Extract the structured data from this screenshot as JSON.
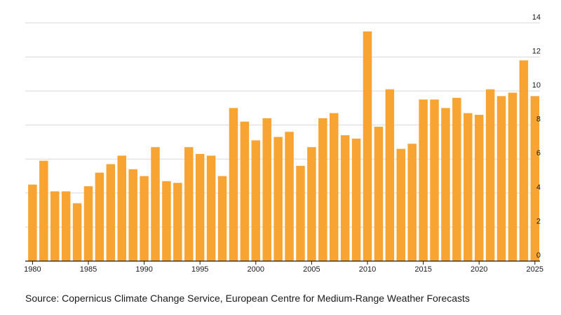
{
  "chart_data": {
    "type": "bar",
    "x": [
      1980,
      1981,
      1982,
      1983,
      1984,
      1985,
      1986,
      1987,
      1988,
      1989,
      1990,
      1991,
      1992,
      1993,
      1994,
      1995,
      1996,
      1997,
      1998,
      1999,
      2000,
      2001,
      2002,
      2003,
      2004,
      2005,
      2006,
      2007,
      2008,
      2009,
      2010,
      2011,
      2012,
      2013,
      2014,
      2015,
      2016,
      2017,
      2018,
      2019,
      2020,
      2021,
      2022,
      2023,
      2024,
      2025
    ],
    "values": [
      4.5,
      5.9,
      4.1,
      4.1,
      3.4,
      4.4,
      5.2,
      5.7,
      6.2,
      5.4,
      5.0,
      6.7,
      4.7,
      4.6,
      6.7,
      6.3,
      6.2,
      5.0,
      9.0,
      8.2,
      7.1,
      8.4,
      7.3,
      7.6,
      5.6,
      6.7,
      8.4,
      8.7,
      7.4,
      7.2,
      13.5,
      7.9,
      10.1,
      6.6,
      6.9,
      9.5,
      9.5,
      9.0,
      9.6,
      8.7,
      8.6,
      10.1,
      9.7,
      9.9,
      11.8,
      9.7
    ],
    "color": "#f8a433",
    "ylim": [
      0,
      14
    ],
    "yticks": [
      "0",
      "2",
      "4",
      "6",
      "8",
      "10",
      "12",
      "14"
    ],
    "xticks": [
      "1980",
      "1985",
      "1990",
      "1995",
      "2000",
      "2005",
      "2010",
      "2015",
      "2020",
      "2025"
    ],
    "grid": true,
    "title": "",
    "xlabel": "",
    "ylabel": ""
  },
  "source": "Source: Copernicus Climate Change Service, European Centre for Medium-Range Weather Forecasts"
}
